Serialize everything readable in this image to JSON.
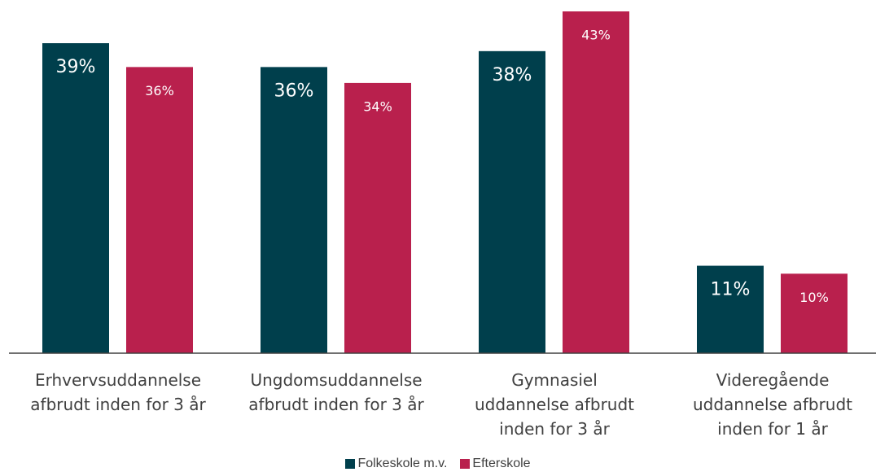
{
  "chart_data": {
    "type": "bar",
    "categories": [
      "Erhvervsuddannelse\nafbrudt inden for 3 år",
      "Ungdomsuddannelse\nafbrudt inden for 3 år",
      "Gymnasiel\nuddannelse afbrudt\ninden for 3 år",
      "Videregående\nuddannelse afbrudt\ninden for 1 år"
    ],
    "series": [
      {
        "name": "Folkeskole m.v.",
        "color": "#003f4c",
        "values": [
          39,
          36,
          38,
          11
        ],
        "value_labels": [
          "39%",
          "36%",
          "38%",
          "11%"
        ]
      },
      {
        "name": "Efterskole",
        "color": "#b9204d",
        "values": [
          36,
          34,
          43,
          10
        ],
        "value_labels": [
          "36%",
          "34%",
          "43%",
          "10%"
        ]
      }
    ],
    "legend": "bottom"
  }
}
